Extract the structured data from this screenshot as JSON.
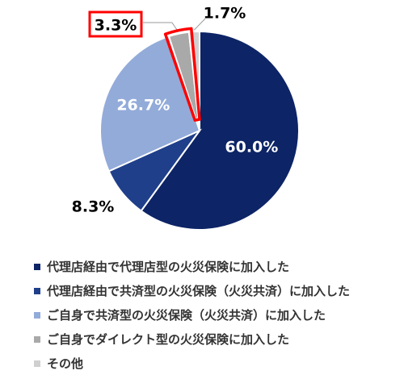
{
  "chart_data": {
    "type": "pie",
    "slices": [
      {
        "label": "代理店経由で代理店型の火災保険に加入した",
        "value": 60.0,
        "value_label": "60.0%",
        "color": "#0d2466"
      },
      {
        "label": "代理店経由で共済型の火災保険（火災共済）に加入した",
        "value": 8.3,
        "value_label": "8.3%",
        "color": "#1f3f8a"
      },
      {
        "label": "ご自身で共済型の火災保険（火災共済）に加入した",
        "value": 26.7,
        "value_label": "26.7%",
        "color": "#93abd9"
      },
      {
        "label": "ご自身でダイレクト型の火災保険に加入した",
        "value": 3.3,
        "value_label": "3.3%",
        "color": "#a9a9a9",
        "highlighted": true
      },
      {
        "label": "その他",
        "value": 1.7,
        "value_label": "1.7%",
        "color": "#d0d0d0"
      }
    ],
    "start_angle_deg": 0,
    "direction": "clockwise",
    "legend_position": "bottom",
    "highlight_color": "#ff0000"
  }
}
